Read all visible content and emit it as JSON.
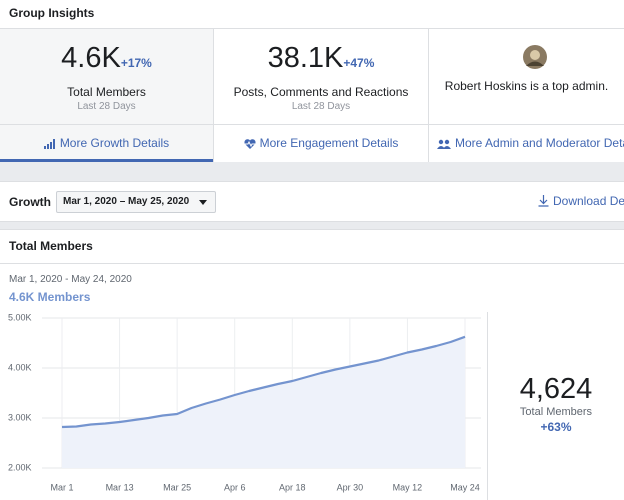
{
  "header": {
    "title": "Group Insights"
  },
  "cards": [
    {
      "value": "4.6K",
      "change": "+17%",
      "label": "Total Members",
      "period": "Last 28 Days",
      "link": "More Growth Details"
    },
    {
      "value": "38.1K",
      "change": "+47%",
      "label": "Posts, Comments and Reactions",
      "period": "Last 28 Days",
      "link": "More Engagement Details"
    },
    {
      "text": "Robert Hoskins is a top admin.",
      "link": "More Admin and Moderator Details"
    }
  ],
  "toolbar": {
    "label": "Growth",
    "date_range": "Mar 1, 2020 – May 25, 2020",
    "download": "Download Details"
  },
  "summary": {
    "headline": "4.6K Members",
    "total": "4,624",
    "total_label": "Total Members",
    "change": "+63%"
  },
  "chart_data": {
    "type": "area",
    "title": "Total Members",
    "subtitle": "Mar 1, 2020 - May 24, 2020",
    "categories": [
      "Mar 1",
      null,
      null,
      null,
      "Mar 13",
      null,
      null,
      null,
      "Mar 25",
      null,
      null,
      null,
      "Apr 6",
      null,
      null,
      null,
      "Apr 18",
      null,
      null,
      null,
      "Apr 30",
      null,
      null,
      null,
      "May 12",
      null,
      null,
      null,
      "May 24"
    ],
    "series": [
      {
        "name": "Total Members",
        "color": "#7494cf",
        "values": [
          2820,
          2830,
          2870,
          2890,
          2920,
          2960,
          3000,
          3050,
          3080,
          3200,
          3290,
          3370,
          3460,
          3540,
          3610,
          3680,
          3740,
          3820,
          3900,
          3970,
          4030,
          4090,
          4150,
          4230,
          4310,
          4370,
          4440,
          4520,
          4624
        ]
      }
    ],
    "ylim": [
      2000,
      5000
    ],
    "yticks": [
      {
        "value": 2000,
        "label": "2.00K"
      },
      {
        "value": 3000,
        "label": "3.00K"
      },
      {
        "value": 4000,
        "label": "4.00K"
      },
      {
        "value": 5000,
        "label": "5.00K"
      }
    ],
    "grid": true
  }
}
